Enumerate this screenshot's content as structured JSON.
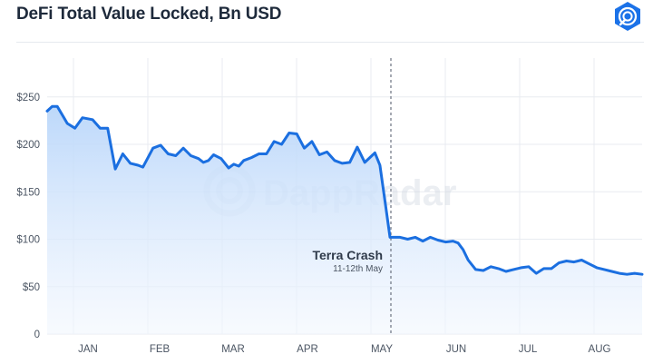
{
  "header": {
    "title": "DeFi Total Value Locked, Bn USD",
    "logo_icon": "dappradar-logo-icon"
  },
  "watermark": {
    "text": "DappRadar"
  },
  "colors": {
    "line": "#1b6fe0",
    "fill_top": "#b9d6fa",
    "fill_bottom": "#f2f7fe",
    "grid": "#e8ebf0",
    "logo": "#1b72e8"
  },
  "chart_data": {
    "type": "area",
    "title": "DeFi Total Value Locked, Bn USD",
    "xlabel": "",
    "ylabel": "",
    "ylim": [
      0,
      262
    ],
    "y_ticks": [
      0,
      50,
      100,
      150,
      200,
      250
    ],
    "y_tick_labels": [
      "0",
      "$50",
      "$100",
      "$150",
      "$200",
      "$250"
    ],
    "x_ticks": [
      "JAN",
      "FEB",
      "MAR",
      "APR",
      "MAY",
      "JUN",
      "JUL",
      "AUG"
    ],
    "grid": true,
    "legend": "none",
    "series": [
      {
        "x": [
          0,
          2,
          4,
          6,
          8,
          11,
          14,
          18,
          21,
          24,
          27,
          30,
          33,
          36,
          38,
          40,
          42,
          45,
          48,
          51,
          54,
          57,
          60,
          62,
          64,
          66,
          69,
          72,
          74,
          76,
          78,
          81,
          84,
          87,
          90,
          93,
          96,
          99,
          102,
          105,
          108,
          111,
          114,
          117,
          120,
          123,
          126,
          128,
          130,
          132,
          134,
          136,
          138,
          140,
          143,
          146,
          149,
          152,
          155,
          158,
          161,
          163,
          165,
          167,
          170,
          173,
          176,
          179,
          182,
          185,
          188,
          191,
          194,
          197,
          200,
          203,
          206,
          209,
          212,
          215,
          218,
          221,
          224,
          227,
          230,
          233,
          236
        ],
        "values": [
          235,
          240,
          240,
          231,
          222,
          217,
          228,
          226,
          217,
          217,
          174,
          190,
          180,
          178,
          176,
          186,
          196,
          199,
          190,
          188,
          196,
          188,
          185,
          181,
          183,
          189,
          185,
          175,
          179,
          177,
          183,
          186,
          190,
          190,
          203,
          200,
          212,
          211,
          196,
          203,
          189,
          192,
          183,
          180,
          181,
          197,
          181,
          186,
          191,
          178,
          140,
          102,
          102,
          102,
          100,
          102,
          98,
          102,
          99,
          97,
          98,
          96,
          89,
          78,
          68,
          67,
          71,
          69,
          66,
          68,
          70,
          71,
          64,
          69,
          69,
          75,
          77,
          76,
          78,
          74,
          70,
          68,
          66,
          64,
          63,
          64,
          63
        ],
        "x_unit": "days since Jan 1"
      }
    ],
    "annotations": [
      {
        "label": "Terra Crash",
        "sublabel": "11-12th May"
      }
    ]
  }
}
